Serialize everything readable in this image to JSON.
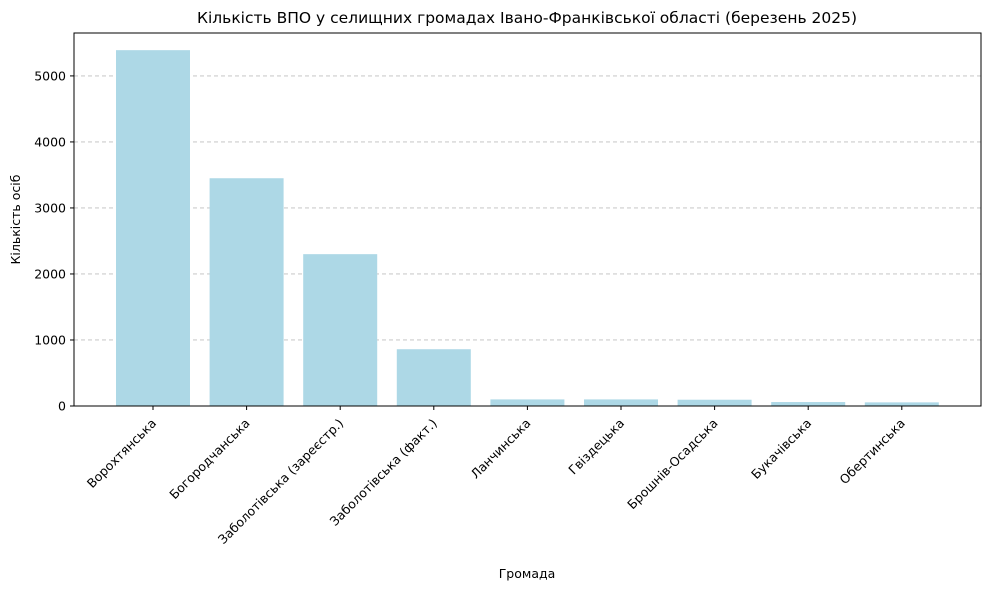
{
  "chart_data": {
    "type": "bar",
    "title": "Кількість ВПО у селищних громадах Івано-Франківської області (березень 2025)",
    "xlabel": "Громада",
    "ylabel": "Кількість осіб",
    "categories": [
      "Ворохтянська",
      "Богородчанська",
      "Заболотівська (зареєстр.)",
      "Заболотівська (факт.)",
      "Ланчинська",
      "Гвіздецька",
      "Брошнів-Осадська",
      "Букачівська",
      "Обертинська"
    ],
    "values": [
      5390,
      3450,
      2300,
      860,
      100,
      100,
      95,
      60,
      55
    ],
    "yticks": [
      0,
      1000,
      2000,
      3000,
      4000,
      5000
    ],
    "ylim": [
      0,
      5650
    ],
    "grid": "y dashed",
    "bar_color": "#add8e6"
  }
}
